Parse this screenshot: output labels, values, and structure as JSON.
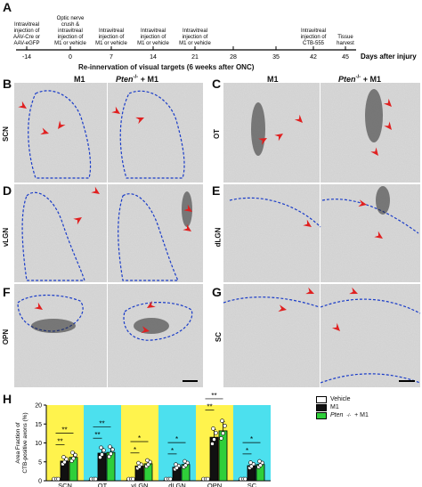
{
  "panel_letters": [
    "A",
    "B",
    "C",
    "D",
    "E",
    "F",
    "G",
    "H"
  ],
  "timeline": {
    "days": [
      "-14",
      "0",
      "7",
      "14",
      "21",
      "28",
      "35",
      "42",
      "45"
    ],
    "axis_label": "Days after injury",
    "events": [
      {
        "day_index": 0,
        "text": "Intravitreal\ninjection of\nAAV-Cre or\nAAV-eGFP"
      },
      {
        "day_index": 1,
        "text": "Optic nerve\ncrush &\nintravitreal\ninjection of\nM1 or vehicle"
      },
      {
        "day_index": 2,
        "text": "Intravitreal\ninjection of\nM1 or vehicle"
      },
      {
        "day_index": 3,
        "text": "Intravitreal\ninjection of\nM1 or vehicle"
      },
      {
        "day_index": 4,
        "text": "Intravitreal\ninjection of\nM1 or vehicle"
      },
      {
        "day_index": 7,
        "text": "Intravitreal\ninjection of\nCTB-555"
      },
      {
        "day_index": 8,
        "text": "Tissue\nharvest"
      }
    ]
  },
  "section_title": "Re-innervation of visual targets (6 weeks after ONC)",
  "col_headers": {
    "left_m1": "M1",
    "left_pten": "Pten",
    "right_m1": "M1",
    "right_pten": "Pten",
    "pten_suffix": " + M1",
    "pten_sup": "-/-"
  },
  "rows": {
    "B": "SCN",
    "C": "OT",
    "D": "vLGN",
    "E": "dLGN",
    "F": "OPN",
    "G": "SC"
  },
  "chart_data": {
    "type": "bar",
    "ylabel": "Area Fraction of\nCTB-positive axons (%)",
    "ylim": [
      0,
      20
    ],
    "yticks": [
      "0",
      "5",
      "10",
      "15",
      "20"
    ],
    "categories": [
      "SCN",
      "OT",
      "vLGN",
      "dLGN",
      "OPN",
      "SC"
    ],
    "series": [
      {
        "name": "Vehicle",
        "values": [
          0.1,
          0.1,
          0.1,
          0.1,
          0.1,
          0.1
        ],
        "color": "#ffffff"
      },
      {
        "name": "M1",
        "values": [
          5.2,
          7.3,
          3.9,
          3.6,
          11.5,
          4.0
        ],
        "color": "#111111"
      },
      {
        "name": "Pten-/- + M1",
        "values": [
          6.2,
          7.5,
          4.5,
          4.3,
          13.2,
          4.3
        ],
        "color": "#2fcf3a"
      }
    ],
    "bg_colors": [
      "#fff34d",
      "#4ce0ee",
      "#fff34d",
      "#4ce0ee",
      "#fff34d",
      "#4ce0ee"
    ],
    "significance": [
      {
        "cat": 0,
        "labels": [
          "**",
          "**"
        ]
      },
      {
        "cat": 1,
        "labels": [
          "**",
          "**"
        ]
      },
      {
        "cat": 2,
        "labels": [
          "*",
          "*"
        ]
      },
      {
        "cat": 3,
        "labels": [
          "*",
          "*"
        ]
      },
      {
        "cat": 4,
        "labels": [
          "**",
          "**"
        ]
      },
      {
        "cat": 5,
        "labels": [
          "*",
          "*"
        ]
      }
    ],
    "legend": [
      "Vehicle",
      "M1",
      "Pten",
      "+ M1"
    ],
    "legend_pten_sup": "-/-"
  }
}
